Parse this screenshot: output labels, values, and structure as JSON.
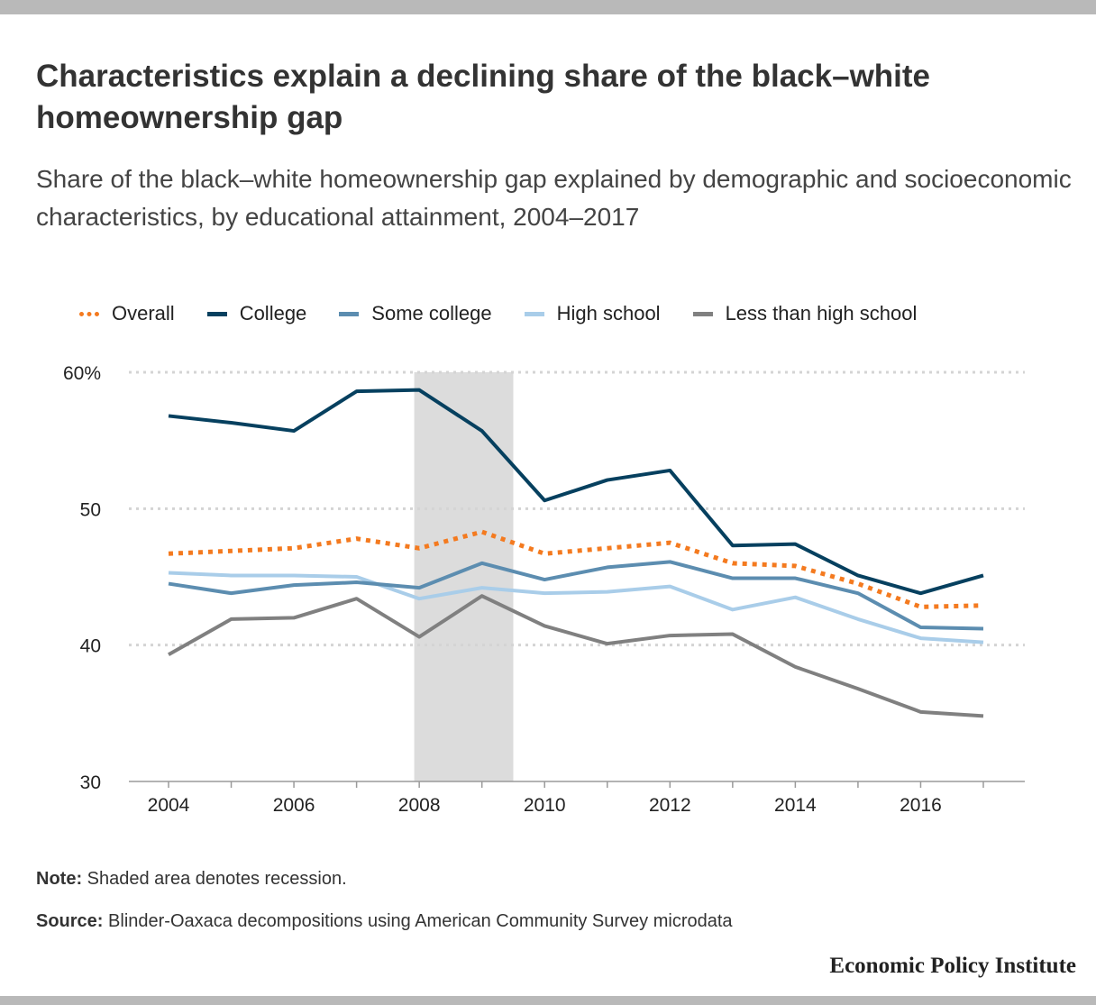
{
  "title": "Characteristics explain a declining share of the black–white homeownership gap",
  "subtitle": "Share of the black–white homeownership gap explained by demographic and socioeconomic characteristics, by educational attainment, 2004–2017",
  "note": {
    "label": "Note:",
    "text": "Shaded area denotes recession."
  },
  "source": {
    "label": "Source:",
    "text": "Blinder-Oaxaca decompositions using American Community Survey microdata"
  },
  "brand": "Economic Policy Institute",
  "chart_data": {
    "type": "line",
    "x": [
      2004,
      2005,
      2006,
      2007,
      2008,
      2009,
      2010,
      2011,
      2012,
      2013,
      2014,
      2015,
      2016,
      2017
    ],
    "xlim": [
      2003.7,
      2017.4
    ],
    "ylim": [
      30,
      60
    ],
    "x_ticks": [
      2004,
      2006,
      2008,
      2010,
      2012,
      2014,
      2016
    ],
    "x_tick_labels": [
      "2004",
      "2006",
      "2008",
      "2010",
      "2012",
      "2014",
      "2016"
    ],
    "y_ticks": [
      30,
      40,
      50,
      60
    ],
    "y_tick_labels": [
      "30",
      "40",
      "50",
      "60%"
    ],
    "grid": true,
    "legend_position": "top",
    "recession_band": [
      2007.92,
      2009.5
    ],
    "series": [
      {
        "name": "Overall",
        "color": "#f47a1f",
        "style": "dotted",
        "values": [
          46.7,
          46.9,
          47.1,
          47.8,
          47.1,
          48.3,
          46.7,
          47.1,
          47.5,
          46.0,
          45.8,
          44.5,
          42.8,
          42.9
        ]
      },
      {
        "name": "College",
        "color": "#06405f",
        "style": "solid",
        "values": [
          56.8,
          56.3,
          55.7,
          58.6,
          58.7,
          55.7,
          50.6,
          52.1,
          52.8,
          47.3,
          47.4,
          45.1,
          43.8,
          45.1
        ]
      },
      {
        "name": "Some college",
        "color": "#5c8db0",
        "style": "solid",
        "values": [
          44.5,
          43.8,
          44.4,
          44.6,
          44.2,
          46.0,
          44.8,
          45.7,
          46.1,
          44.9,
          44.9,
          43.8,
          41.3,
          41.2
        ]
      },
      {
        "name": "High school",
        "color": "#a9cde9",
        "style": "solid",
        "values": [
          45.3,
          45.1,
          45.1,
          45.0,
          43.4,
          44.2,
          43.8,
          43.9,
          44.3,
          42.6,
          43.5,
          41.9,
          40.5,
          40.2
        ]
      },
      {
        "name": "Less than high school",
        "color": "#808080",
        "style": "solid",
        "values": [
          39.3,
          41.9,
          42.0,
          43.4,
          40.6,
          43.6,
          41.4,
          40.1,
          40.7,
          40.8,
          38.4,
          36.8,
          35.1,
          34.8
        ]
      }
    ]
  }
}
